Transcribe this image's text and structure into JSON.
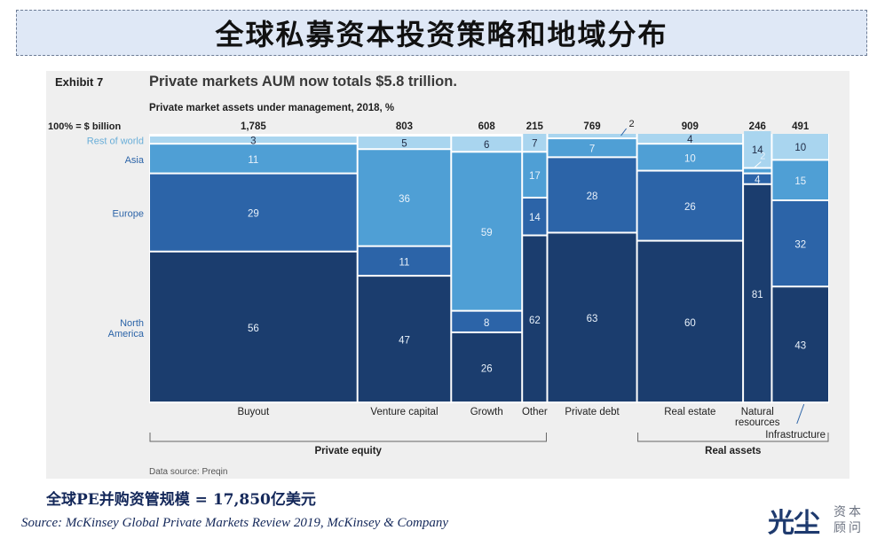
{
  "page": {
    "title": "全球私募资本投资策略和地域分布",
    "note": "全球PE并购资管规模 = 17,850亿美元",
    "source": "Source: McKinsey Global Private Markets Review 2019, McKinsey & Company",
    "logo_main": "光尘",
    "logo_sub1": "资本",
    "logo_sub2": "顾问"
  },
  "chart_data": {
    "type": "mekko",
    "exhibit": "Exhibit 7",
    "title": "Private markets AUM now totals $5.8 trillion.",
    "subtitle": "Private market assets under management, 2018, %",
    "total_label": "100% = $ billion",
    "data_source": "Data source: Preqin",
    "segments": [
      "North America",
      "Europe",
      "Asia",
      "Rest of world"
    ],
    "segment_labels": [
      "North\nAmerica",
      "Europe",
      "Asia",
      "Rest of world"
    ],
    "colors": [
      "#1b3d6e",
      "#2c64a8",
      "#4f9fd5",
      "#a9d5ef"
    ],
    "categories": [
      {
        "name": "Buyout",
        "total": 1785,
        "values": [
          56,
          29,
          11,
          3
        ]
      },
      {
        "name": "Venture capital",
        "total": 803,
        "values": [
          47,
          11,
          36,
          5
        ]
      },
      {
        "name": "Growth",
        "total": 608,
        "values": [
          26,
          8,
          59,
          6
        ]
      },
      {
        "name": "Other",
        "total": 215,
        "values": [
          62,
          14,
          17,
          7
        ]
      },
      {
        "name": "Private debt",
        "total": 769,
        "values": [
          63,
          28,
          7,
          2
        ]
      },
      {
        "name": "Real estate",
        "total": 909,
        "values": [
          60,
          26,
          10,
          4
        ]
      },
      {
        "name": "Natural\nresources",
        "total": 246,
        "values": [
          81,
          4,
          2,
          14
        ]
      },
      {
        "name": "Infrastructure",
        "total": 491,
        "values": [
          43,
          32,
          15,
          10
        ]
      }
    ],
    "groups": [
      {
        "name": "Private equity",
        "from": 0,
        "to": 3
      },
      {
        "name": "Real assets",
        "from": 5,
        "to": 7
      }
    ]
  }
}
